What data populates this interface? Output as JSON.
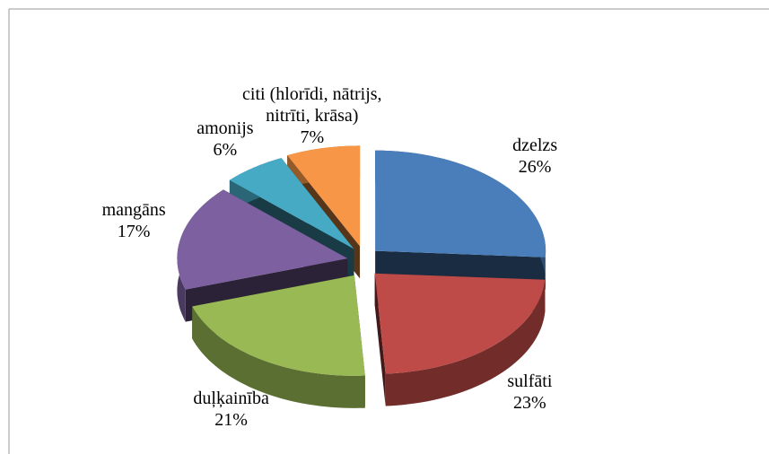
{
  "chart_data": {
    "type": "pie3d",
    "categories": [
      "dzelzs",
      "sulfāti",
      "duļķainība",
      "mangāns",
      "amonijs",
      "citi (hlorīdi, nātrijs, nitrīti, krāsa)"
    ],
    "values": [
      26,
      23,
      21,
      17,
      6,
      7
    ],
    "value_labels": [
      "26%",
      "23%",
      "21%",
      "17%",
      "6%",
      "7%"
    ],
    "colors": [
      "#4a7ebb",
      "#be4b48",
      "#98b954",
      "#7d60a0",
      "#46aac5",
      "#f79646"
    ]
  }
}
